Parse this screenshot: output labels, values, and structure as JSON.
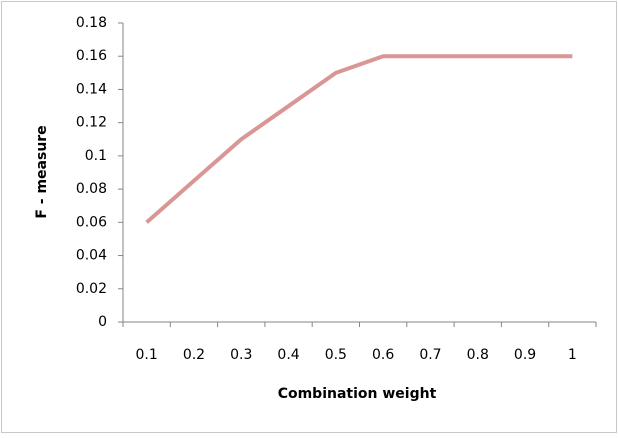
{
  "chart_data": {
    "type": "line",
    "xlabel": "Combination weight",
    "ylabel": "F - measure",
    "categories": [
      "0.1",
      "0.2",
      "0.3",
      "0.4",
      "0.5",
      "0.6",
      "0.7",
      "0.8",
      "0.9",
      "1"
    ],
    "values": [
      0.06,
      0.085,
      0.11,
      0.13,
      0.15,
      0.16,
      0.16,
      0.16,
      0.16,
      0.16
    ],
    "color": "#d99694",
    "ylim": [
      0,
      0.18
    ],
    "yticks": [
      0,
      0.02,
      0.04,
      0.06,
      0.08,
      0.1,
      0.12,
      0.14,
      0.16,
      0.18
    ],
    "grid": false
  }
}
